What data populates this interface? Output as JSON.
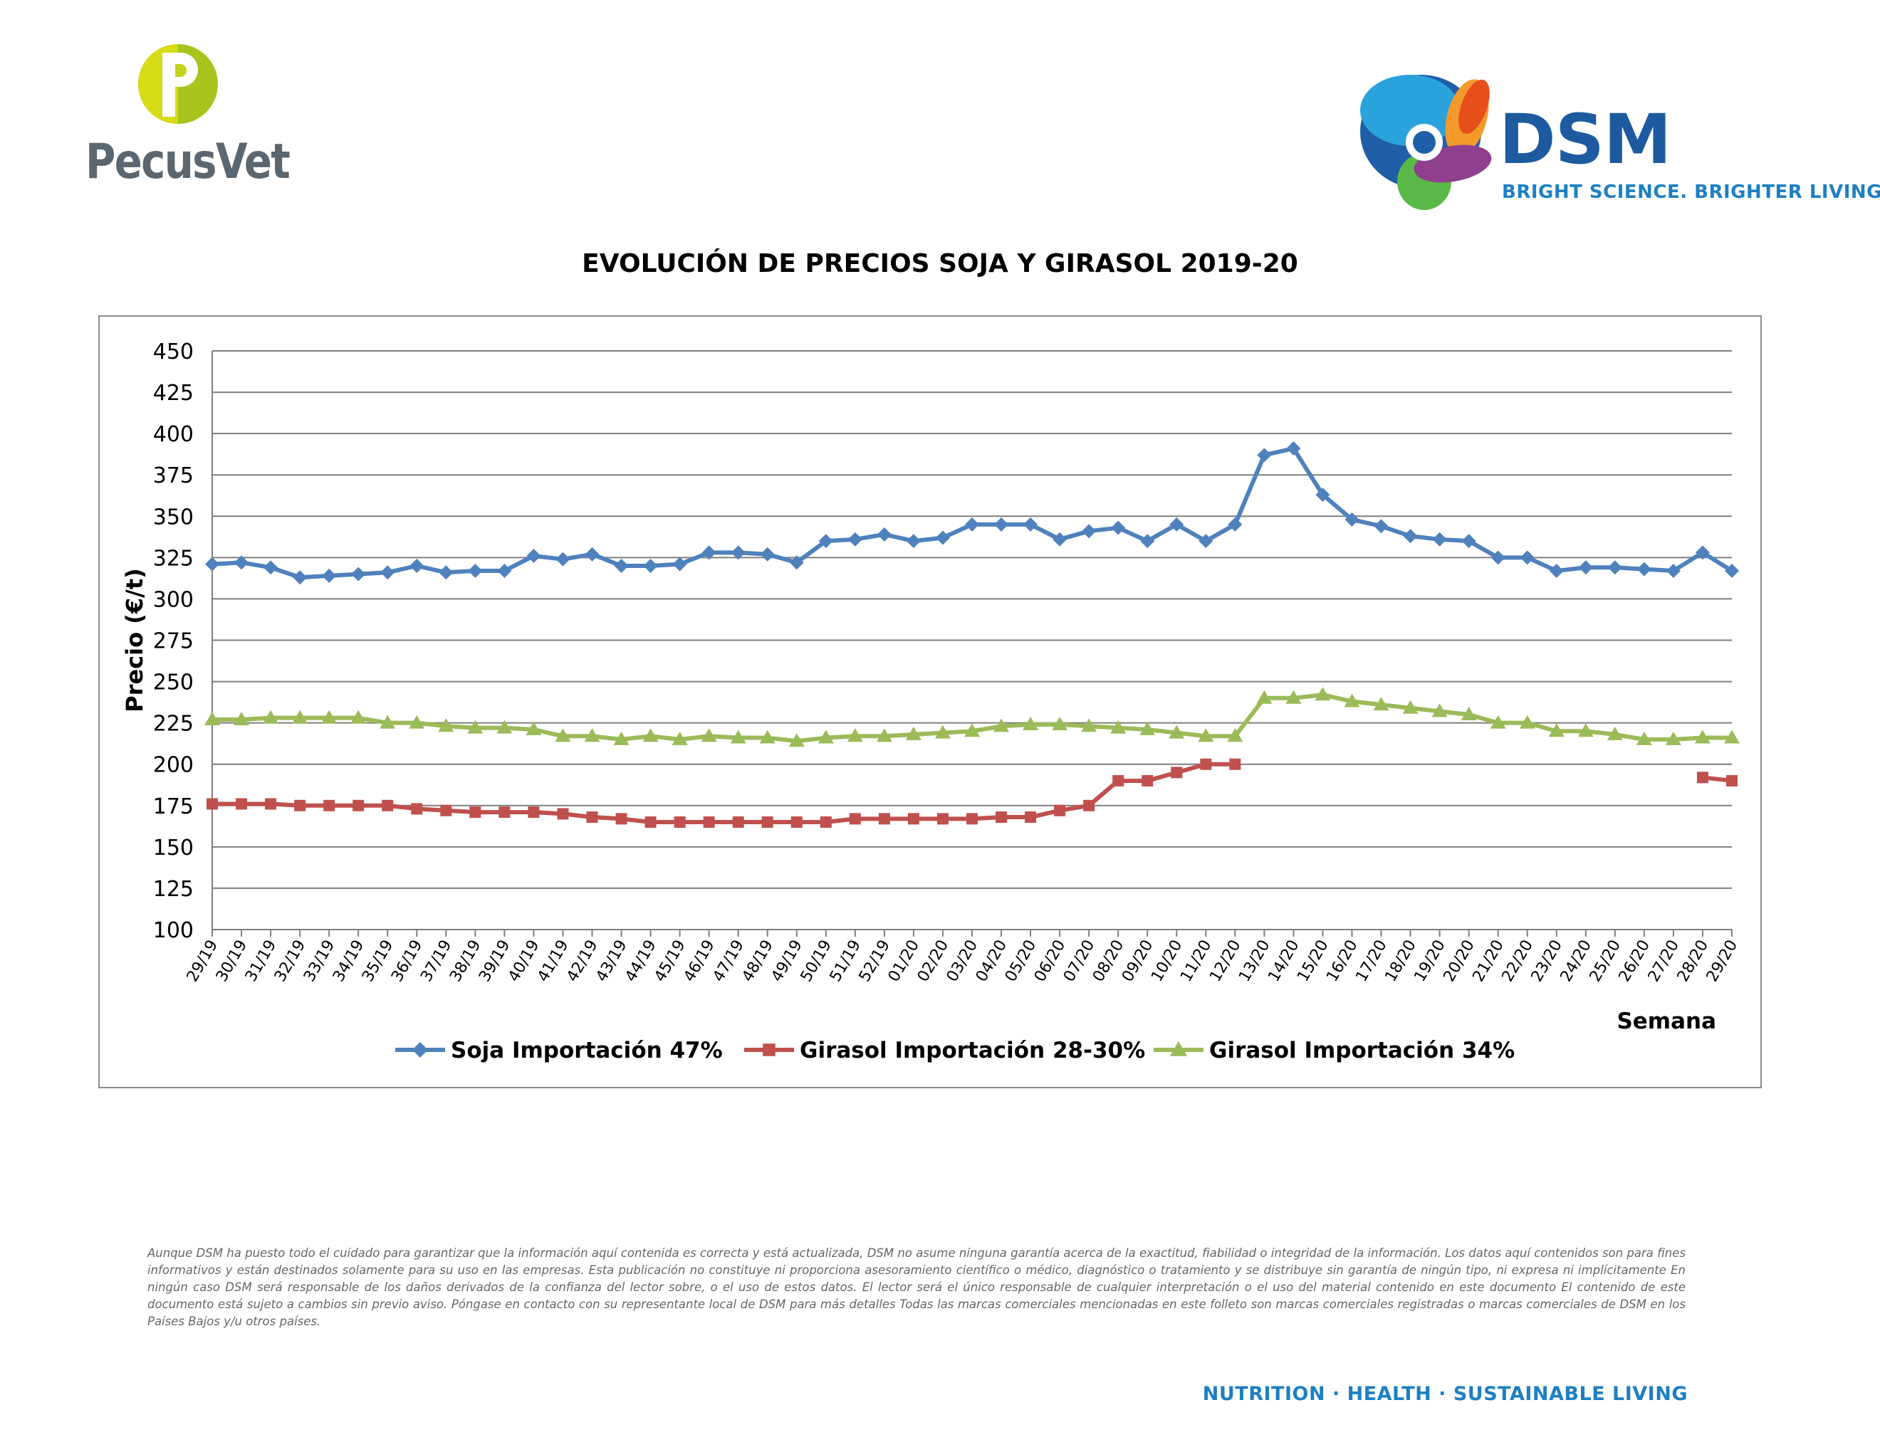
{
  "header": {
    "left_logo": "PecusVet",
    "right_logo": "DSM",
    "right_logo_tagline": "BRIGHT SCIENCE. BRIGHTER LIVING."
  },
  "disclaimer": "Aunque DSM ha puesto todo el cuidado para garantizar que la información aquí contenida es correcta y está actualizada, DSM no asume ninguna garantía acerca de la exactitud, fiabilidad o integridad de la información. Los datos aquí contenidos son para fines informativos y están destinados solamente para su uso en las empresas. Esta publicación no constituye ni proporciona asesoramiento científico o médico, diagnóstico o tratamiento y se distribuye sin garantía de ningún tipo, ni expresa ni implícitamente En ningún caso DSM será responsable de los daños derivados de la confianza del lector sobre, o el uso de estos datos. El lector será el único responsable de cualquier interpretación o el uso del material contenido en este documento El contenido de este documento está sujeto a cambios sin previo aviso. Póngase en contacto con su representante local de DSM para más detalles Todas las marcas comerciales mencionadas en este folleto son marcas comerciales registradas o marcas comerciales de DSM en los Países Bajos y/u otros países.",
  "footer_tagline": "NUTRITION · HEALTH · SUSTAINABLE LIVING",
  "chart_data": {
    "type": "line",
    "title": "EVOLUCIÓN DE PRECIOS SOJA Y GIRASOL 2019-20",
    "xlabel": "Semana",
    "ylabel": "Precio (€/t)",
    "ylim": [
      100,
      450
    ],
    "yticks": [
      100,
      125,
      150,
      175,
      200,
      225,
      250,
      275,
      300,
      325,
      350,
      375,
      400,
      425,
      450
    ],
    "grid": true,
    "legend_position": "bottom",
    "categories": [
      "29/19",
      "30/19",
      "31/19",
      "32/19",
      "33/19",
      "34/19",
      "35/19",
      "36/19",
      "37/19",
      "38/19",
      "39/19",
      "40/19",
      "41/19",
      "42/19",
      "43/19",
      "44/19",
      "45/19",
      "46/19",
      "47/19",
      "48/19",
      "49/19",
      "50/19",
      "51/19",
      "52/19",
      "01/20",
      "02/20",
      "03/20",
      "04/20",
      "05/20",
      "06/20",
      "07/20",
      "08/20",
      "09/20",
      "10/20",
      "11/20",
      "12/20",
      "13/20",
      "14/20",
      "15/20",
      "16/20",
      "17/20",
      "18/20",
      "19/20",
      "20/20",
      "21/20",
      "22/20",
      "23/20",
      "24/20",
      "25/20",
      "26/20",
      "27/20",
      "28/20",
      "29/20"
    ],
    "series": [
      {
        "name": "Soja Importación 47%",
        "color": "#4f81bd",
        "marker": "diamond",
        "values": [
          321,
          322,
          319,
          313,
          314,
          315,
          316,
          320,
          316,
          317,
          317,
          326,
          324,
          327,
          320,
          320,
          321,
          328,
          328,
          327,
          322,
          335,
          336,
          339,
          335,
          337,
          345,
          345,
          345,
          336,
          341,
          343,
          335,
          345,
          335,
          345,
          387,
          391,
          363,
          348,
          344,
          338,
          336,
          335,
          325,
          325,
          317,
          319,
          319,
          318,
          317,
          328,
          317
        ]
      },
      {
        "name": "Girasol Importación 28-30%",
        "color": "#c0504d",
        "marker": "square",
        "values": [
          176,
          176,
          176,
          175,
          175,
          175,
          175,
          173,
          172,
          171,
          171,
          171,
          170,
          168,
          167,
          165,
          165,
          165,
          165,
          165,
          165,
          165,
          167,
          167,
          167,
          167,
          167,
          168,
          168,
          172,
          175,
          190,
          190,
          195,
          200,
          200,
          null,
          null,
          null,
          null,
          null,
          null,
          null,
          null,
          null,
          null,
          null,
          null,
          null,
          null,
          null,
          192,
          190
        ]
      },
      {
        "name": "Girasol Importación 34%",
        "color": "#9bbb59",
        "marker": "triangle",
        "values": [
          227,
          227,
          228,
          228,
          228,
          228,
          225,
          225,
          223,
          222,
          222,
          221,
          217,
          217,
          215,
          217,
          215,
          217,
          216,
          216,
          214,
          216,
          217,
          217,
          218,
          219,
          220,
          223,
          224,
          224,
          223,
          222,
          221,
          219,
          217,
          217,
          240,
          240,
          242,
          238,
          236,
          234,
          232,
          230,
          225,
          225,
          220,
          220,
          218,
          215,
          215,
          216,
          216
        ]
      }
    ]
  }
}
